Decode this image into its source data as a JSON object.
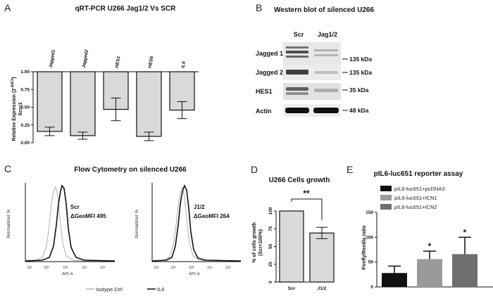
{
  "panel_labels": {
    "A": "A",
    "B": "B",
    "C": "C",
    "D": "D",
    "E": "E"
  },
  "chart_data": [
    {
      "panel": "A",
      "type": "bar",
      "title": "qRT-PCR U266 Jag1/2 Vs SCR",
      "categories": [
        "Jagged1",
        "Jagged2",
        "HES1",
        "HES6",
        "IL6"
      ],
      "values": [
        0.16,
        0.1,
        0.47,
        0.09,
        0.46
      ],
      "errors": [
        0.06,
        0.05,
        0.16,
        0.06,
        0.12
      ],
      "ylabel": "Relative Expression (2",
      "ylabel_sup": "-ΔΔCt",
      "ylabel_end": ")",
      "ylabel2": "Scr=1",
      "ylim": [
        0,
        1
      ],
      "yticks": [
        "0.00",
        "0.25",
        "0.50",
        "0.75",
        "1.00"
      ],
      "bar_color": "#d9d9d9"
    },
    {
      "panel": "D",
      "type": "bar",
      "title": "U266 Cells growth",
      "categories": [
        "Scr",
        "J1/2"
      ],
      "values": [
        100,
        69
      ],
      "errors": [
        0,
        8
      ],
      "ylabel": "% of cells growth",
      "ylabel2": "(Scr=100%)",
      "ylim": [
        0,
        100
      ],
      "yticks": [
        "0",
        "25",
        "50",
        "75",
        "100"
      ],
      "significance": "**",
      "bar_color": "#d9d9d9"
    },
    {
      "panel": "E",
      "type": "bar",
      "title": "pIL6-luc651 reporter assay",
      "categories": [
        "pIL6-luc651+pcDNA3",
        "pIL6-luc651+ICN1",
        "pIL6-luc651+ICN2"
      ],
      "values": [
        28,
        56,
        66
      ],
      "errors": [
        14,
        16,
        34
      ],
      "colors": [
        "#111111",
        "#9a9a9a",
        "#6e6e6e"
      ],
      "ylabel": "Firefly/Renilla ratio",
      "ylim": [
        0,
        150
      ],
      "yticks": [
        "0",
        "50",
        "100",
        "150"
      ],
      "significance": [
        "",
        "*",
        "*"
      ]
    },
    {
      "panel": "C",
      "type": "histogram-overlay",
      "title": "Flow Cytometry on silenced U266",
      "xlabel": "APC-A",
      "ylabel": "Normalized %",
      "xticks": [
        "10¹",
        "10²",
        "10³",
        "10⁴",
        "10⁵"
      ],
      "legend": [
        {
          "name": "Isotype Ctrl",
          "color": "#b0b0b0"
        },
        {
          "name": "IL6",
          "color": "#111111"
        }
      ],
      "subplots": [
        {
          "sample": "Scr",
          "stat": "ΔGeoMFI 495"
        },
        {
          "sample": "J1/2",
          "stat": "ΔGeoMFI 264"
        }
      ]
    }
  ],
  "western": {
    "title": "Western blot of silenced U266",
    "lanes": [
      "Scr",
      "Jag1/2"
    ],
    "rows": [
      {
        "label": "Jagged 1",
        "kda": "135 kDa"
      },
      {
        "label": "Jagged 2",
        "kda": "135 kDa"
      },
      {
        "label": "HES1",
        "kda": "35 kDa"
      },
      {
        "label": "Actin",
        "kda": "48 kDa"
      }
    ]
  }
}
